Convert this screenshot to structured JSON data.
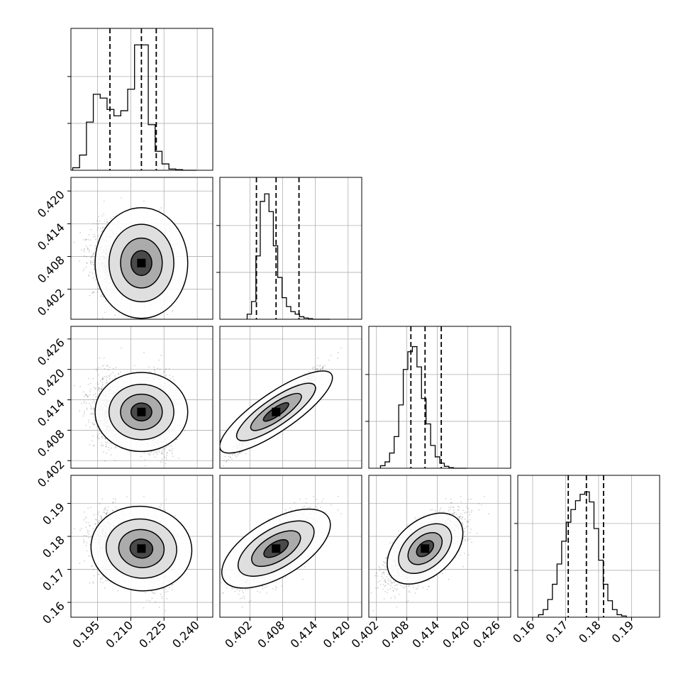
{
  "chart_data": {
    "type": "corner",
    "title": "",
    "n_params": 4,
    "params": [
      {
        "label": "",
        "xlim": [
          0.183,
          0.247
        ],
        "ticks": [
          0.195,
          0.21,
          0.225,
          0.24
        ],
        "tick_labels": [
          "0.195",
          "0.210",
          "0.225",
          "0.240"
        ],
        "quantiles": [
          0.2006,
          0.2148,
          0.2215
        ],
        "hist_edges": [
          0.1838,
          0.1869,
          0.19,
          0.1931,
          0.1962,
          0.1993,
          0.2024,
          0.2055,
          0.2086,
          0.2117,
          0.2148,
          0.2179,
          0.221,
          0.2241,
          0.2272,
          0.2303,
          0.2334,
          0.2365,
          0.2396
        ],
        "hist_counts": [
          0.02,
          0.12,
          0.38,
          0.6,
          0.57,
          0.48,
          0.43,
          0.47,
          0.64,
          0.99,
          0.99,
          0.36,
          0.15,
          0.05,
          0.01,
          0.005,
          0,
          0
        ]
      },
      {
        "label": "",
        "xlim": [
          0.3965,
          0.4225
        ],
        "ticks": [
          0.402,
          0.408,
          0.414,
          0.42
        ],
        "tick_labels": [
          "0.402",
          "0.408",
          "0.414",
          "0.420"
        ],
        "quantiles": [
          0.4032,
          0.4068,
          0.411
        ],
        "hist_edges": [
          0.4015,
          0.4023,
          0.4031,
          0.4039,
          0.4047,
          0.4055,
          0.4063,
          0.4071,
          0.4079,
          0.4087,
          0.4095,
          0.4103,
          0.4111,
          0.4119,
          0.4127,
          0.4135,
          0.4143,
          0.4151,
          0.4159,
          0.4167
        ],
        "hist_counts": [
          0.04,
          0.14,
          0.5,
          0.93,
          0.99,
          0.85,
          0.58,
          0.33,
          0.17,
          0.1,
          0.06,
          0.04,
          0.02,
          0.01,
          0.005,
          0,
          0,
          0,
          0
        ]
      },
      {
        "label": "",
        "xlim": [
          0.4005,
          0.4285
        ],
        "ticks": [
          0.402,
          0.408,
          0.414,
          0.42,
          0.426
        ],
        "tick_labels": [
          "0.402",
          "0.408",
          "0.414",
          "0.420",
          "0.426"
        ],
        "quantiles": [
          0.4088,
          0.4116,
          0.4148
        ],
        "hist_edges": [
          0.4028,
          0.4037,
          0.4046,
          0.4055,
          0.4064,
          0.4073,
          0.4082,
          0.4091,
          0.41,
          0.4109,
          0.4118,
          0.4127,
          0.4136,
          0.4145,
          0.4154,
          0.4163,
          0.4172,
          0.4181,
          0.419,
          0.4199
        ],
        "hist_counts": [
          0.02,
          0.05,
          0.12,
          0.25,
          0.5,
          0.78,
          0.92,
          0.96,
          0.8,
          0.55,
          0.35,
          0.18,
          0.09,
          0.04,
          0.015,
          0.005,
          0,
          0,
          0
        ]
      },
      {
        "label": "",
        "xlim": [
          0.1555,
          0.1985
        ],
        "ticks": [
          0.16,
          0.17,
          0.18,
          0.19
        ],
        "tick_labels": [
          "0.16",
          "0.17",
          "0.18",
          "0.19"
        ],
        "quantiles": [
          0.1708,
          0.1763,
          0.1815
        ],
        "hist_edges": [
          0.1618,
          0.1632,
          0.1646,
          0.166,
          0.1674,
          0.1688,
          0.1702,
          0.1716,
          0.173,
          0.1744,
          0.1758,
          0.1772,
          0.1786,
          0.18,
          0.1814,
          0.1828,
          0.1842,
          0.1856,
          0.187,
          0.1884
        ],
        "hist_counts": [
          0.02,
          0.06,
          0.14,
          0.26,
          0.42,
          0.6,
          0.75,
          0.85,
          0.92,
          0.97,
          0.99,
          0.91,
          0.7,
          0.45,
          0.26,
          0.13,
          0.06,
          0.02,
          0.01
        ]
      }
    ],
    "correlations": {
      "1,0": 0.0,
      "2,0": 0.0,
      "2,1": 0.96,
      "3,0": -0.15,
      "3,1": 0.72,
      "3,2": 0.74
    },
    "grid": true,
    "line_color": "#000000",
    "point_color": "#000000"
  }
}
